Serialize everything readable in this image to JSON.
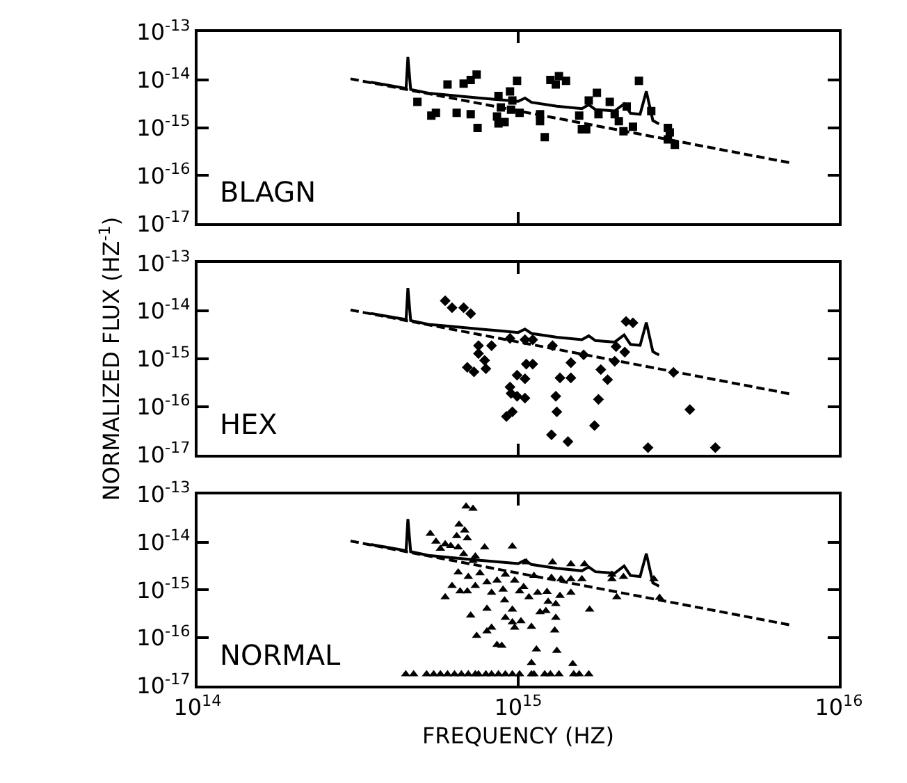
{
  "chart_data": [
    {
      "type": "scatter",
      "log": "xy",
      "tick_labels": "y",
      "annotations": [
        "BLAGN"
      ],
      "xlim": [
        100000000000000.0,
        1e+16
      ],
      "ylim": [
        1e-17,
        1e-13
      ],
      "xticks": [
        {
          "value": 100000000000000.0,
          "label": "10$^{14}$"
        },
        {
          "value": 1000000000000000.0,
          "label": "10$^{15}$"
        },
        {
          "value": 1e+16,
          "label": "10$^{16}$"
        }
      ],
      "yticks": [
        {
          "value": 1e-13,
          "label": "10$^{-13}$"
        },
        {
          "value": 1e-14,
          "label": "10$^{-14}$"
        },
        {
          "value": 1e-15,
          "label": "10$^{-15}$"
        },
        {
          "value": 1e-16,
          "label": "10$^{-16}$"
        },
        {
          "value": 1e-17,
          "label": "10$^{-17}$"
        }
      ],
      "series": [
        {
          "marker": "square",
          "color": "#000000",
          "x": [
            485000000000000.0,
            536000000000000.0,
            554000000000000.0,
            602000000000000.0,
            643000000000000.0,
            676000000000000.0,
            711000000000000.0,
            742000000000000.0,
            711000000000000.0,
            747000000000000.0,
            868000000000000.0,
            883000000000000.0,
            859000000000000.0,
            868000000000000.0,
            907000000000000.0,
            943000000000000.0,
            959000000000000.0,
            950000000000000.0,
            992000000000000.0,
            1010000000000000.0,
            1170000000000000.0,
            1170000000000000.0,
            1210000000000000.0,
            1260000000000000.0,
            1340000000000000.0,
            1310000000000000.0,
            1410000000000000.0,
            1550000000000000.0,
            1580000000000000.0,
            1630000000000000.0,
            1660000000000000.0,
            1760000000000000.0,
            1780000000000000.0,
            1930000000000000.0,
            2000000000000000.0,
            2060000000000000.0,
            2130000000000000.0,
            2180000000000000.0,
            2280000000000000.0,
            2380000000000000.0,
            2600000000000000.0,
            2930000000000000.0,
            2930000000000000.0,
            3080000000000000.0,
            2970000000000000.0
          ],
          "values": [
            3.46e-15,
            1.79e-15,
            2.04e-15,
            7.97e-15,
            2.04e-15,
            8.33e-15,
            9.93e-15,
            1.29e-14,
            1.91e-15,
            9.87e-16,
            4.6e-15,
            2.65e-15,
            1.71e-15,
            1.23e-15,
            1.31e-15,
            5.73e-15,
            3.69e-15,
            2.38e-15,
            9.51e-15,
            2.04e-15,
            1.91e-15,
            1.37e-15,
            6.35e-16,
            9.93e-15,
            1.19e-14,
            7.97e-15,
            9.51e-15,
            1.79e-15,
            9.24e-16,
            9.24e-16,
            3.69e-15,
            5.37e-15,
            1.91e-15,
            3.46e-15,
            1.91e-15,
            1.37e-15,
            8.46e-16,
            2.77e-15,
            1.05e-15,
            9.51e-15,
            2.23e-15,
            9.87e-16,
            5.69e-16,
            4.38e-16,
            7.93e-16
          ]
        },
        {
          "type": "line",
          "line_style": "solid",
          "color": "#000000",
          "x": [
            347000000000000.0,
            398000000000000.0,
            447000000000000.0,
            453000000000000.0,
            462000000000000.0,
            525000000000000.0,
            631000000000000.0,
            759000000000000.0,
            891000000000000.0,
            1000000000000000.0,
            1050000000000000.0,
            1100000000000000.0,
            1320000000000000.0,
            1580000000000000.0,
            1660000000000000.0,
            1740000000000000.0,
            2000000000000000.0,
            2140000000000000.0,
            2240000000000000.0,
            2400000000000000.0,
            2510000000000000.0,
            2630000000000000.0,
            2750000000000000.0
          ],
          "values": [
            8.91e-15,
            7.59e-15,
            6.61e-15,
            3.02e-14,
            6.31e-15,
            5.25e-15,
            4.68e-15,
            4.17e-15,
            3.8e-15,
            3.55e-15,
            4.17e-15,
            3.39e-15,
            2.82e-15,
            2.51e-15,
            3.02e-15,
            2.4e-15,
            2.24e-15,
            3.16e-15,
            2e-15,
            1.91e-15,
            5.75e-15,
            1.41e-15,
            1.2e-15
          ]
        },
        {
          "type": "line",
          "line_style": "dashed",
          "color": "#000000",
          "x": [
            300000000000000.0,
            7200000000000000.0
          ],
          "values": [
            1.05e-14,
            1.8e-16
          ]
        }
      ]
    },
    {
      "type": "scatter",
      "log": "xy",
      "tick_labels": "y",
      "annotations": [
        "HEX"
      ],
      "ylabel": "NORMALIZED FLUX (HZ$^{-1}$)",
      "xlim": [
        100000000000000.0,
        1e+16
      ],
      "ylim": [
        1e-17,
        1e-13
      ],
      "xticks": [
        {
          "value": 100000000000000.0,
          "label": "10$^{14}$"
        },
        {
          "value": 1000000000000000.0,
          "label": "10$^{15}$"
        },
        {
          "value": 1e+16,
          "label": "10$^{16}$"
        }
      ],
      "yticks": [
        {
          "value": 1e-13,
          "label": "10$^{-13}$"
        },
        {
          "value": 1e-14,
          "label": "10$^{-14}$"
        },
        {
          "value": 1e-15,
          "label": "10$^{-15}$"
        },
        {
          "value": 1e-16,
          "label": "10$^{-16}$"
        },
        {
          "value": 1e-17,
          "label": "10$^{-17}$"
        }
      ],
      "series": [
        {
          "marker": "diamond",
          "color": "#000000",
          "x": [
            592000000000000.0,
            622000000000000.0,
            676000000000000.0,
            711000000000000.0,
            752000000000000.0,
            826000000000000.0,
            752000000000000.0,
            786000000000000.0,
            694000000000000.0,
            728000000000000.0,
            793000000000000.0,
            943000000000000.0,
            1050000000000000.0,
            1110000000000000.0,
            1060000000000000.0,
            1110000000000000.0,
            992000000000000.0,
            1050000000000000.0,
            943000000000000.0,
            950000000000000.0,
            992000000000000.0,
            1050000000000000.0,
            959000000000000.0,
            919000000000000.0,
            1280000000000000.0,
            1600000000000000.0,
            1460000000000000.0,
            1350000000000000.0,
            1460000000000000.0,
            1310000000000000.0,
            1320000000000000.0,
            1270000000000000.0,
            1430000000000000.0,
            2000000000000000.0,
            1810000000000000.0,
            1900000000000000.0,
            1780000000000000.0,
            1730000000000000.0,
            2020000000000000.0,
            2150000000000000.0,
            2170000000000000.0,
            2280000000000000.0,
            3050000000000000.0,
            3430000000000000.0,
            2540000000000000.0,
            4120000000000000.0
          ],
          "values": [
            1.63e-14,
            1.17e-14,
            1.17e-14,
            8.81e-15,
            1.88e-15,
            1.88e-15,
            1.29e-15,
            9.25e-16,
            6.65e-16,
            5.33e-16,
            6.22e-16,
            2.67e-15,
            2.5e-15,
            2.5e-15,
            7.76e-16,
            7.76e-16,
            4.56e-16,
            3.83e-16,
            2.57e-16,
            1.89e-16,
            1.65e-16,
            1.51e-16,
            7.8e-17,
            6.25e-17,
            1.88e-15,
            1.21e-15,
            8.29e-16,
            4e-16,
            4e-16,
            1.65e-16,
            7.8e-17,
            2.58e-17,
            1.86e-17,
            8.86e-16,
            5.96e-16,
            3.66e-16,
            1.42e-16,
            4.02e-17,
            1.8e-15,
            1.38e-15,
            6.05e-15,
            5.66e-15,
            5.21e-16,
            8.71e-17,
            1.39e-17,
            1.39e-17
          ]
        },
        {
          "type": "line",
          "line_style": "solid",
          "color": "#000000",
          "x": [
            347000000000000.0,
            398000000000000.0,
            447000000000000.0,
            453000000000000.0,
            462000000000000.0,
            525000000000000.0,
            631000000000000.0,
            759000000000000.0,
            891000000000000.0,
            1000000000000000.0,
            1050000000000000.0,
            1100000000000000.0,
            1320000000000000.0,
            1580000000000000.0,
            1660000000000000.0,
            1740000000000000.0,
            2000000000000000.0,
            2140000000000000.0,
            2240000000000000.0,
            2400000000000000.0,
            2510000000000000.0,
            2630000000000000.0,
            2750000000000000.0
          ],
          "values": [
            8.91e-15,
            7.59e-15,
            6.61e-15,
            3.02e-14,
            6.31e-15,
            5.25e-15,
            4.68e-15,
            4.17e-15,
            3.8e-15,
            3.55e-15,
            4.17e-15,
            3.39e-15,
            2.82e-15,
            2.51e-15,
            3.02e-15,
            2.4e-15,
            2.24e-15,
            3.16e-15,
            2e-15,
            1.91e-15,
            5.75e-15,
            1.41e-15,
            1.2e-15
          ]
        },
        {
          "type": "line",
          "line_style": "dashed",
          "color": "#000000",
          "x": [
            300000000000000.0,
            7200000000000000.0
          ],
          "values": [
            1.05e-14,
            1.8e-16
          ]
        }
      ]
    },
    {
      "type": "scatter",
      "log": "xy",
      "annotations": [
        "NORMAL"
      ],
      "xlabel": "FREQUENCY (HZ)",
      "xlim": [
        100000000000000.0,
        1e+16
      ],
      "ylim": [
        1e-17,
        1e-13
      ],
      "xticks": [
        {
          "value": 100000000000000.0,
          "label": "10$^{14}$"
        },
        {
          "value": 1000000000000000.0,
          "label": "10$^{15}$"
        },
        {
          "value": 1e+16,
          "label": "10$^{16}$"
        }
      ],
      "yticks": [
        {
          "value": 1e-13,
          "label": "10$^{-13}$"
        },
        {
          "value": 1e-14,
          "label": "10$^{-14}$"
        },
        {
          "value": 1e-15,
          "label": "10$^{-15}$"
        },
        {
          "value": 1e-16,
          "label": "10$^{-16}$"
        },
        {
          "value": 1e-17,
          "label": "10$^{-17}$"
        }
      ],
      "series": [
        {
          "marker": "triangle",
          "color": "#000000",
          "x": [
            688000000000000.0,
            723000000000000.0,
            654000000000000.0,
            681000000000000.0,
            532000000000000.0,
            554000000000000.0,
            643000000000000.0,
            694000000000000.0,
            592000000000000.0,
            616000000000000.0,
            650000000000000.0,
            572000000000000.0,
            786000000000000.0,
            959000000000000.0,
            676000000000000.0,
            735000000000000.0,
            723000000000000.0,
            650000000000000.0,
            699000000000000.0,
            760000000000000.0,
            622000000000000.0,
            659000000000000.0,
            694000000000000.0,
            735000000000000.0,
            799000000000000.0,
            859000000000000.0,
            912000000000000.0,
            975000000000000.0,
            1040000000000000.0,
            1120000000000000.0,
            592000000000000.0,
            826000000000000.0,
            897000000000000.0,
            1010000000000000.0,
            1080000000000000.0,
            1150000000000000.0,
            1230000000000000.0,
            1350000000000000.0,
            1460000000000000.0,
            1240000000000000.0,
            1310000000000000.0,
            711000000000000.0,
            799000000000000.0,
            907000000000000.0,
            959000000000000.0,
            1220000000000000.0,
            1670000000000000.0,
            912000000000000.0,
            959000000000000.0,
            1020000000000000.0,
            1170000000000000.0,
            1310000000000000.0,
            1100000000000000.0,
            826000000000000.0,
            799000000000000.0,
            975000000000000.0,
            1300000000000000.0,
            742000000000000.0,
            859000000000000.0,
            889000000000000.0,
            1140000000000000.0,
            1320000000000000.0,
            1100000000000000.0,
            1480000000000000.0,
            1270000000000000.0,
            1360000000000000.0,
            1460000000000000.0,
            1580000000000000.0,
            1960000000000000.0,
            2130000000000000.0,
            2650000000000000.0,
            2030000000000000.0,
            2760000000000000.0,
            1610000000000000.0,
            1460000000000000.0,
            1280000000000000.0,
            1060000000000000.0,
            1960000000000000.0,
            446000000000000.0,
            472000000000000.0,
            518000000000000.0,
            545000000000000.0,
            572000000000000.0,
            602000000000000.0,
            633000000000000.0,
            665000000000000.0,
            699000000000000.0,
            735000000000000.0,
            752000000000000.0,
            793000000000000.0,
            826000000000000.0,
            868000000000000.0,
            912000000000000.0,
            959000000000000.0,
            1010000000000000.0,
            1100000000000000.0,
            1120000000000000.0,
            1210000000000000.0,
            1260000000000000.0,
            1340000000000000.0,
            1490000000000000.0,
            1550000000000000.0,
            1660000000000000.0
          ],
          "values": [
            5.55e-14,
            4.97e-14,
            2.32e-14,
            1.75e-14,
            1.5e-14,
            1.03e-14,
            1.34e-14,
            1.2e-14,
            9.06e-15,
            8.3e-15,
            7.78e-15,
            7.29e-15,
            7.78e-15,
            8.13e-15,
            5.61e-15,
            5.03e-15,
            4.05e-15,
            2.34e-15,
            1.88e-15,
            2.24e-15,
            1.22e-15,
            9.37e-16,
            9.37e-16,
            1.22e-15,
            1.45e-15,
            1.58e-15,
            2.1e-15,
            1.58e-15,
            1.16e-15,
            1.97e-15,
            7.05e-16,
            8.77e-16,
            1.02e-15,
            9.37e-16,
            7.05e-16,
            8.77e-16,
            9.17e-16,
            7.54e-16,
            8.77e-16,
            5.67e-16,
            5.08e-16,
            2.94e-16,
            4.08e-16,
            6.05e-16,
            3.91e-16,
            3.66e-16,
            3.91e-16,
            2.64e-16,
            2.12e-16,
            2.22e-16,
            3.43e-16,
            2.64e-16,
            1.71e-16,
            1.63e-16,
            1.37e-16,
            1.63e-16,
            1.43e-16,
            1.1e-16,
            7.13e-17,
            6.83e-17,
            5.73e-17,
            5.37e-17,
            2.98e-17,
            2.85e-17,
            1.8e-15,
            1.69e-15,
            1.69e-15,
            1.69e-15,
            1.69e-15,
            1.88e-15,
            1.69e-15,
            7.05e-16,
            6.9e-16,
            3.47e-15,
            3.47e-15,
            3.79e-15,
            3.79e-15,
            2.1e-15,
            1.73e-17,
            1.73e-17,
            1.73e-17,
            1.73e-17,
            1.73e-17,
            1.73e-17,
            1.73e-17,
            1.73e-17,
            1.73e-17,
            1.73e-17,
            1.73e-17,
            1.73e-17,
            1.73e-17,
            1.73e-17,
            1.73e-17,
            1.73e-17,
            1.73e-17,
            1.73e-17,
            1.73e-17,
            1.73e-17,
            1.73e-17,
            1.73e-17,
            1.73e-17,
            1.73e-17,
            1.73e-17
          ]
        },
        {
          "type": "line",
          "line_style": "solid",
          "color": "#000000",
          "x": [
            347000000000000.0,
            398000000000000.0,
            447000000000000.0,
            453000000000000.0,
            462000000000000.0,
            525000000000000.0,
            631000000000000.0,
            759000000000000.0,
            891000000000000.0,
            1000000000000000.0,
            1050000000000000.0,
            1100000000000000.0,
            1320000000000000.0,
            1580000000000000.0,
            1660000000000000.0,
            1740000000000000.0,
            2000000000000000.0,
            2140000000000000.0,
            2240000000000000.0,
            2400000000000000.0,
            2510000000000000.0,
            2630000000000000.0,
            2750000000000000.0
          ],
          "values": [
            8.91e-15,
            7.59e-15,
            6.61e-15,
            3.02e-14,
            6.31e-15,
            5.25e-15,
            4.68e-15,
            4.17e-15,
            3.8e-15,
            3.55e-15,
            4.17e-15,
            3.39e-15,
            2.82e-15,
            2.51e-15,
            3.02e-15,
            2.4e-15,
            2.24e-15,
            3.16e-15,
            2e-15,
            1.91e-15,
            5.75e-15,
            1.41e-15,
            1.2e-15
          ]
        },
        {
          "type": "line",
          "line_style": "dashed",
          "color": "#000000",
          "x": [
            300000000000000.0,
            7200000000000000.0
          ],
          "values": [
            1.05e-14,
            1.8e-16
          ]
        }
      ]
    }
  ]
}
